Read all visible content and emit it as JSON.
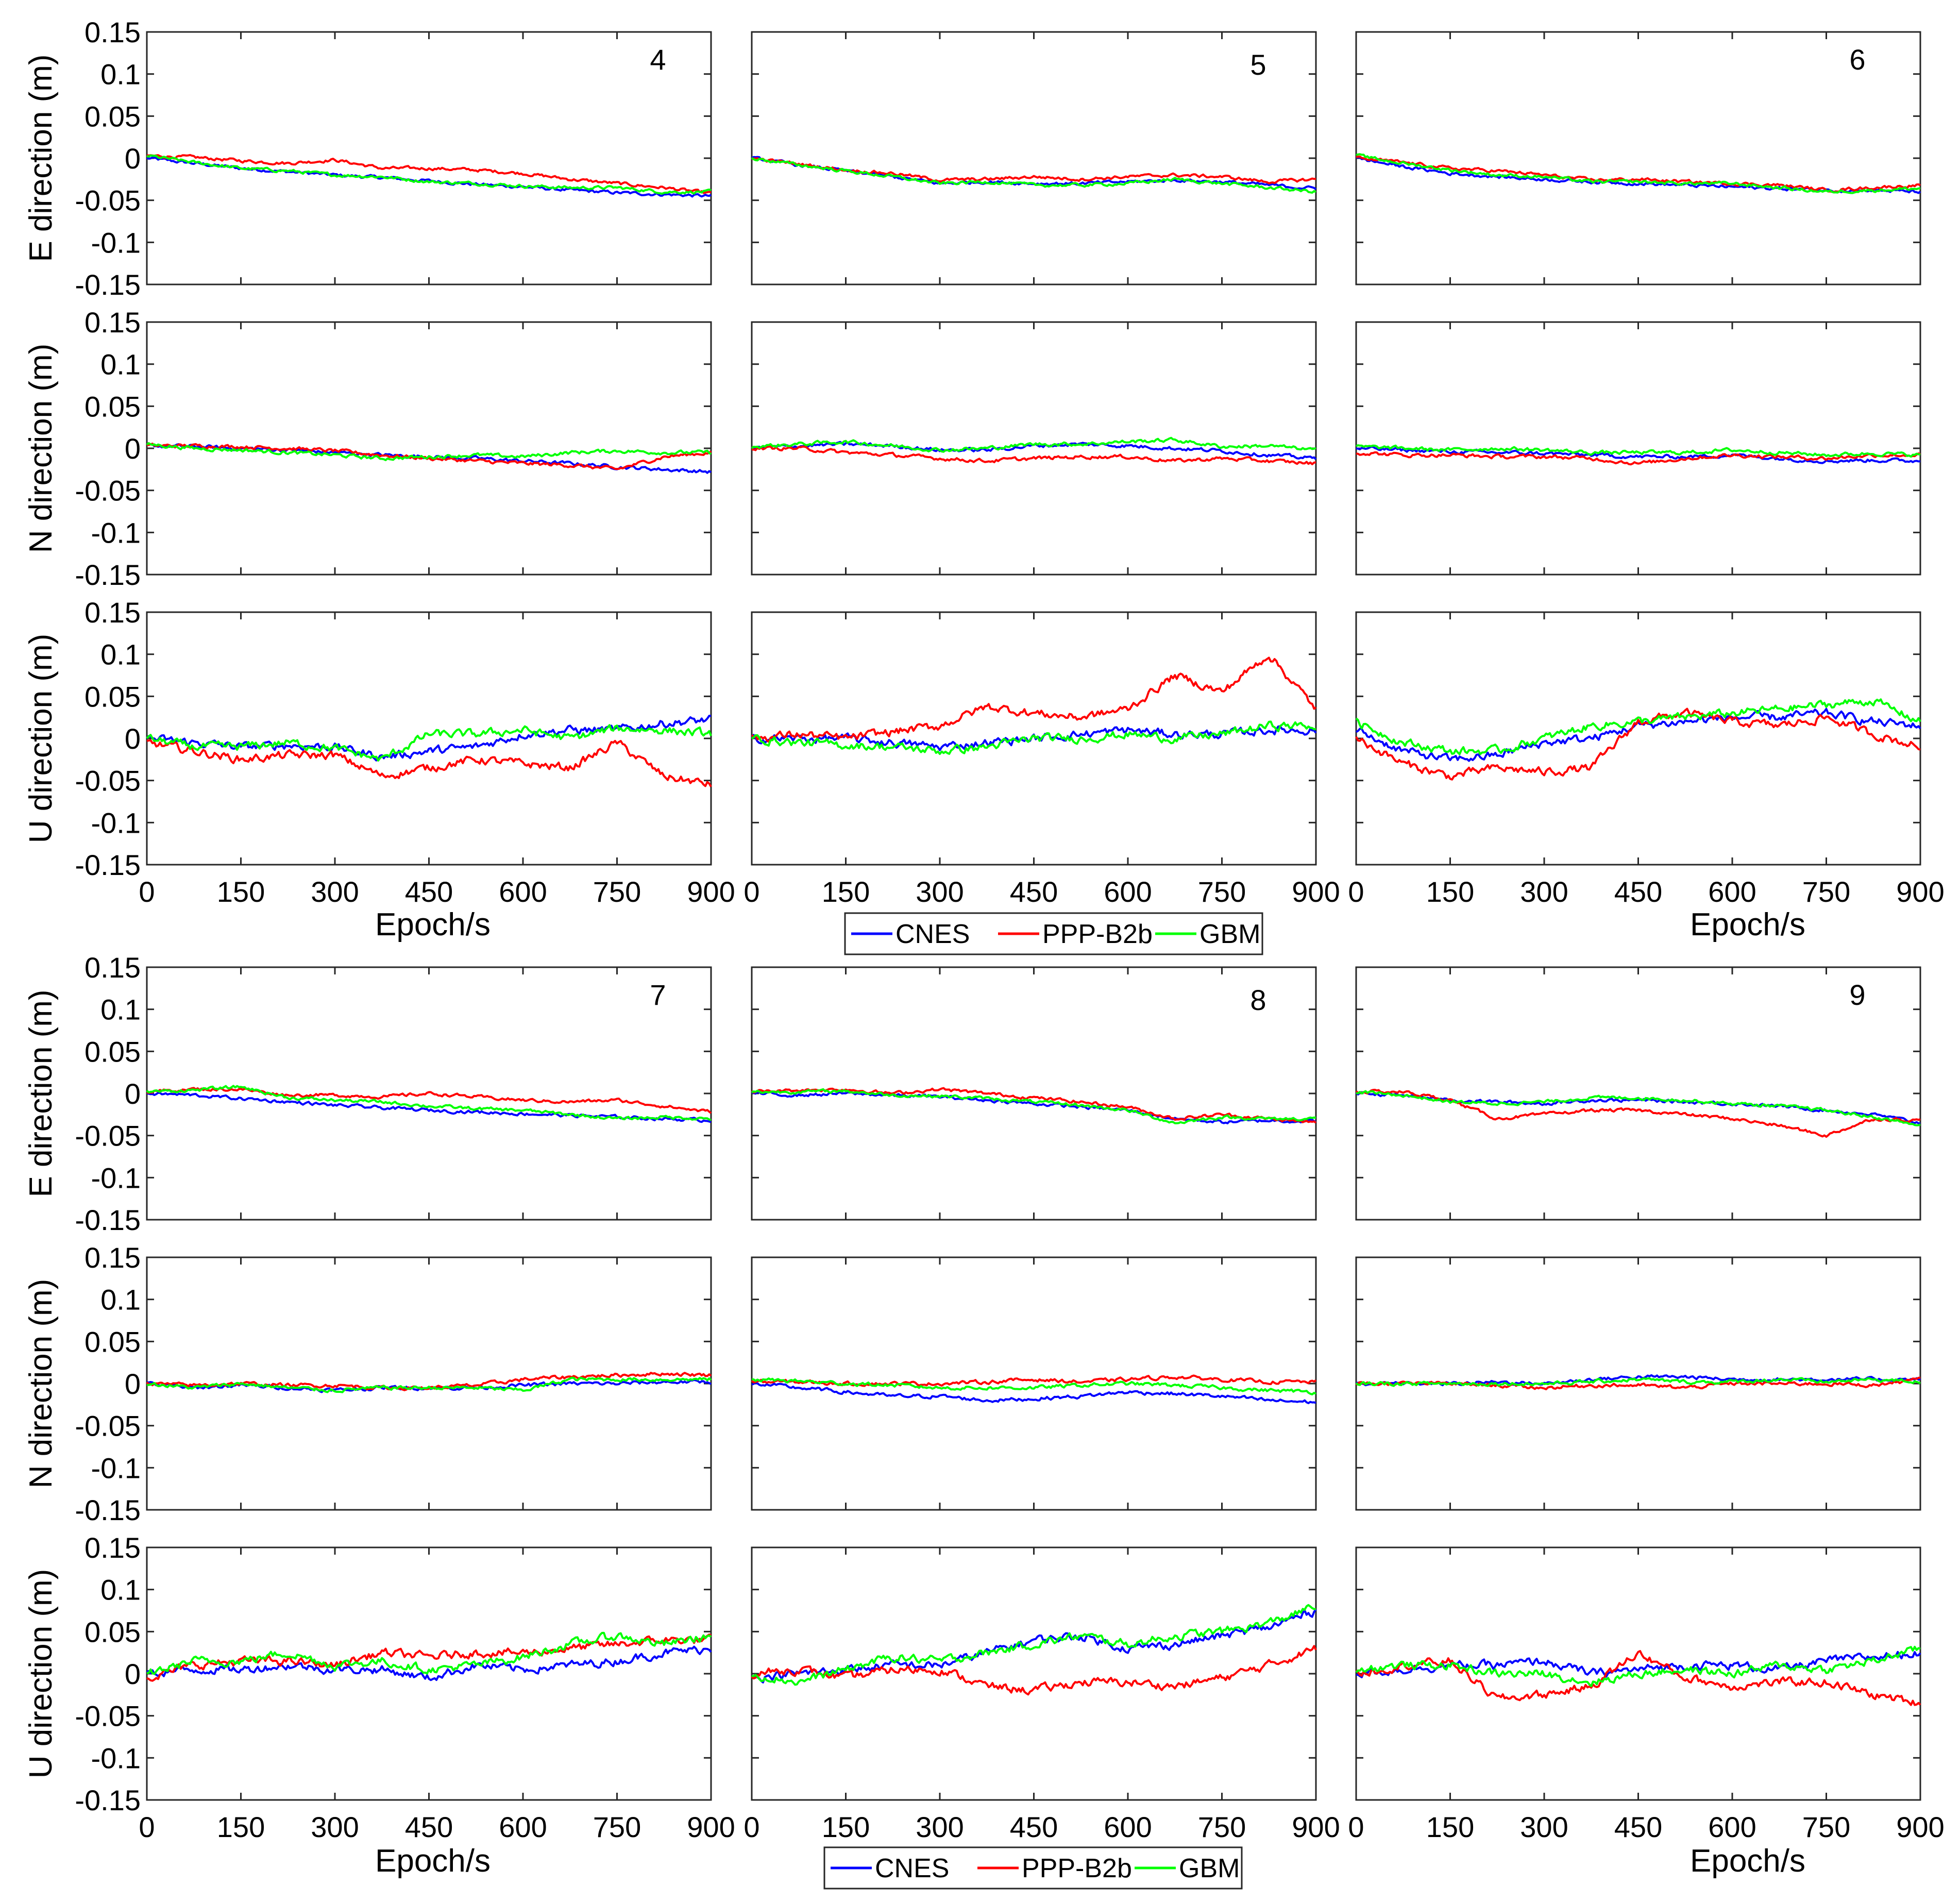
{
  "chart_data": {
    "type": "line",
    "x_ticks": [
      0,
      150,
      300,
      450,
      600,
      750,
      900
    ],
    "y_ticks": [
      0.15,
      0.1,
      0.05,
      0,
      -0.05,
      -0.1,
      -0.15
    ],
    "x_tick_labels": [
      "0",
      "150",
      "300",
      "450",
      "600",
      "750",
      "900"
    ],
    "y_tick_labels": [
      "0.15",
      "0.1",
      "0.05",
      "0",
      "-0.05",
      "-0.1",
      "-0.15"
    ],
    "xlim": [
      0,
      900
    ],
    "ylim": [
      -0.15,
      0.15
    ],
    "xlabel": "Epoch/s",
    "ylabels": {
      "E": "E direction (m)",
      "N": "N direction (m)",
      "U": "U direction (m)"
    },
    "colors": {
      "CNES": "#0000ff",
      "PPP-B2b": "#ff0000",
      "GBM": "#00ff00"
    },
    "legend": [
      "CNES",
      "PPP-B2b",
      "GBM"
    ],
    "series_names": [
      "CNES",
      "PPP-B2b",
      "GBM"
    ],
    "samples_x": [
      0,
      75,
      150,
      225,
      300,
      375,
      450,
      525,
      600,
      675,
      750,
      825,
      900
    ],
    "panels": [
      {
        "id": "4",
        "E": {
          "CNES": [
            0.0,
            -0.006,
            -0.012,
            -0.016,
            -0.02,
            -0.023,
            -0.027,
            -0.031,
            -0.034,
            -0.038,
            -0.041,
            -0.043,
            -0.045
          ],
          "PPP-B2b": [
            0.003,
            0.001,
            -0.003,
            -0.006,
            -0.002,
            -0.012,
            -0.012,
            -0.014,
            -0.018,
            -0.025,
            -0.03,
            -0.035,
            -0.042
          ],
          "GBM": [
            0.003,
            -0.005,
            -0.012,
            -0.015,
            -0.02,
            -0.022,
            -0.028,
            -0.03,
            -0.033,
            -0.035,
            -0.035,
            -0.04,
            -0.04
          ]
        },
        "N": {
          "CNES": [
            0.003,
            0.002,
            0.0,
            -0.002,
            -0.005,
            -0.008,
            -0.01,
            -0.012,
            -0.015,
            -0.018,
            -0.022,
            -0.025,
            -0.028
          ],
          "PPP-B2b": [
            0.003,
            0.003,
            0.002,
            0.0,
            -0.003,
            -0.008,
            -0.012,
            -0.015,
            -0.018,
            -0.02,
            -0.025,
            -0.01,
            -0.005
          ],
          "GBM": [
            0.005,
            0.0,
            -0.002,
            -0.005,
            -0.008,
            -0.012,
            -0.01,
            -0.008,
            -0.01,
            -0.005,
            -0.003,
            -0.005,
            -0.005
          ]
        },
        "U": {
          "CNES": [
            0.0,
            -0.005,
            -0.01,
            -0.008,
            -0.01,
            -0.022,
            -0.015,
            -0.01,
            0.005,
            0.01,
            0.01,
            0.018,
            0.022
          ],
          "PPP-B2b": [
            -0.005,
            -0.015,
            -0.025,
            -0.02,
            -0.02,
            -0.045,
            -0.035,
            -0.025,
            -0.03,
            -0.035,
            -0.005,
            -0.045,
            -0.055
          ],
          "GBM": [
            0.0,
            -0.01,
            -0.01,
            -0.005,
            -0.012,
            -0.025,
            0.005,
            0.005,
            0.01,
            0.0,
            0.012,
            0.01,
            0.005
          ]
        }
      },
      {
        "id": "5",
        "E": {
          "CNES": [
            0.0,
            -0.008,
            -0.015,
            -0.022,
            -0.03,
            -0.028,
            -0.03,
            -0.03,
            -0.028,
            -0.026,
            -0.028,
            -0.032,
            -0.036
          ],
          "PPP-B2b": [
            0.0,
            -0.007,
            -0.014,
            -0.018,
            -0.026,
            -0.025,
            -0.022,
            -0.025,
            -0.022,
            -0.02,
            -0.022,
            -0.028,
            -0.025
          ],
          "GBM": [
            0.0,
            -0.008,
            -0.015,
            -0.022,
            -0.03,
            -0.028,
            -0.032,
            -0.032,
            -0.03,
            -0.025,
            -0.03,
            -0.035,
            -0.04
          ]
        },
        "N": {
          "CNES": [
            0.0,
            0.003,
            0.005,
            0.003,
            -0.002,
            -0.002,
            0.003,
            0.005,
            0.003,
            0.0,
            -0.003,
            -0.008,
            -0.012
          ],
          "PPP-B2b": [
            0.0,
            0.0,
            -0.005,
            -0.008,
            -0.012,
            -0.015,
            -0.012,
            -0.01,
            -0.01,
            -0.015,
            -0.012,
            -0.015,
            -0.018
          ],
          "GBM": [
            0.002,
            0.005,
            0.008,
            0.003,
            -0.002,
            0.0,
            0.005,
            0.005,
            0.008,
            0.01,
            0.002,
            0.003,
            -0.002
          ]
        },
        "U": {
          "CNES": [
            0.0,
            0.0,
            0.0,
            -0.005,
            -0.01,
            -0.005,
            0.0,
            0.005,
            0.01,
            0.005,
            0.005,
            0.01,
            0.01
          ],
          "PPP-B2b": [
            0.0,
            0.005,
            0.0,
            0.008,
            0.015,
            0.038,
            0.03,
            0.025,
            0.035,
            0.075,
            0.055,
            0.1,
            0.035
          ],
          "GBM": [
            0.0,
            -0.005,
            -0.008,
            -0.01,
            -0.015,
            -0.01,
            0.0,
            0.0,
            0.005,
            0.0,
            0.005,
            0.015,
            0.015
          ]
        }
      },
      {
        "id": "6",
        "E": {
          "CNES": [
            0.0,
            -0.01,
            -0.018,
            -0.022,
            -0.025,
            -0.028,
            -0.03,
            -0.032,
            -0.034,
            -0.036,
            -0.038,
            -0.038,
            -0.04
          ],
          "PPP-B2b": [
            0.0,
            -0.005,
            -0.012,
            -0.015,
            -0.02,
            -0.026,
            -0.025,
            -0.028,
            -0.03,
            -0.032,
            -0.038,
            -0.035,
            -0.032
          ],
          "GBM": [
            0.003,
            -0.006,
            -0.014,
            -0.02,
            -0.022,
            -0.028,
            -0.028,
            -0.03,
            -0.03,
            -0.035,
            -0.04,
            -0.038,
            -0.036
          ]
        },
        "N": {
          "CNES": [
            0.0,
            -0.002,
            -0.004,
            -0.005,
            -0.006,
            -0.008,
            -0.01,
            -0.01,
            -0.008,
            -0.012,
            -0.015,
            -0.014,
            -0.015
          ],
          "PPP-B2b": [
            -0.005,
            -0.008,
            -0.008,
            -0.01,
            -0.01,
            -0.012,
            -0.018,
            -0.012,
            -0.008,
            -0.01,
            -0.012,
            -0.008,
            -0.008
          ],
          "GBM": [
            0.002,
            0.0,
            -0.002,
            0.0,
            -0.002,
            -0.005,
            -0.005,
            -0.005,
            -0.002,
            -0.005,
            -0.008,
            -0.006,
            -0.008
          ]
        },
        "U": {
          "CNES": [
            0.01,
            -0.015,
            -0.025,
            -0.02,
            -0.005,
            0.0,
            0.015,
            0.02,
            0.025,
            0.025,
            0.03,
            0.02,
            0.015
          ],
          "PPP-B2b": [
            0.0,
            -0.03,
            -0.045,
            -0.035,
            -0.04,
            -0.035,
            0.02,
            0.03,
            0.02,
            0.015,
            0.025,
            0.005,
            -0.01
          ],
          "GBM": [
            0.02,
            -0.005,
            -0.015,
            -0.015,
            0.0,
            0.015,
            0.02,
            0.025,
            0.03,
            0.035,
            0.04,
            0.045,
            0.02
          ]
        }
      },
      {
        "id": "7",
        "E": {
          "CNES": [
            0.0,
            -0.002,
            -0.006,
            -0.01,
            -0.014,
            -0.017,
            -0.02,
            -0.022,
            -0.024,
            -0.026,
            -0.028,
            -0.03,
            -0.032
          ],
          "PPP-B2b": [
            0.002,
            0.005,
            0.005,
            -0.002,
            -0.002,
            -0.004,
            0.0,
            -0.004,
            -0.008,
            -0.01,
            -0.008,
            -0.015,
            -0.022
          ],
          "GBM": [
            0.002,
            0.004,
            0.008,
            -0.005,
            -0.008,
            -0.01,
            -0.015,
            -0.018,
            -0.02,
            -0.025,
            -0.03,
            -0.028,
            -0.03
          ]
        },
        "N": {
          "CNES": [
            0.0,
            -0.005,
            -0.002,
            -0.005,
            -0.008,
            -0.005,
            -0.005,
            -0.005,
            -0.002,
            0.0,
            0.0,
            0.002,
            0.002
          ],
          "PPP-B2b": [
            0.0,
            -0.002,
            0.0,
            -0.002,
            -0.002,
            -0.005,
            -0.005,
            -0.002,
            0.005,
            0.008,
            0.01,
            0.012,
            0.01
          ],
          "GBM": [
            0.0,
            -0.005,
            0.0,
            -0.005,
            -0.008,
            -0.005,
            -0.005,
            -0.005,
            -0.008,
            0.005,
            0.005,
            0.005,
            0.005
          ]
        },
        "U": {
          "CNES": [
            0.0,
            0.005,
            0.005,
            0.01,
            0.005,
            0.005,
            -0.005,
            0.01,
            0.005,
            0.01,
            0.015,
            0.025,
            0.03
          ],
          "PPP-B2b": [
            -0.005,
            0.01,
            0.015,
            0.015,
            0.01,
            0.025,
            0.02,
            0.025,
            0.025,
            0.03,
            0.035,
            0.04,
            0.04
          ],
          "GBM": [
            0.0,
            0.015,
            0.015,
            0.025,
            0.01,
            0.015,
            0.005,
            0.01,
            0.02,
            0.035,
            0.045,
            0.035,
            0.045
          ]
        }
      },
      {
        "id": "8",
        "E": {
          "CNES": [
            0.0,
            -0.002,
            0.0,
            -0.002,
            -0.004,
            -0.008,
            -0.012,
            -0.016,
            -0.02,
            -0.03,
            -0.034,
            -0.032,
            -0.033
          ],
          "PPP-B2b": [
            0.002,
            0.004,
            0.005,
            0.0,
            0.005,
            0.0,
            -0.005,
            -0.01,
            -0.016,
            -0.03,
            -0.025,
            -0.03,
            -0.035
          ],
          "GBM": [
            0.002,
            0.002,
            0.003,
            -0.002,
            -0.003,
            -0.006,
            -0.01,
            -0.014,
            -0.02,
            -0.035,
            -0.028,
            -0.03,
            -0.03
          ]
        },
        "N": {
          "CNES": [
            0.0,
            -0.005,
            -0.01,
            -0.015,
            -0.015,
            -0.02,
            -0.018,
            -0.015,
            -0.01,
            -0.012,
            -0.015,
            -0.02,
            -0.022
          ],
          "PPP-B2b": [
            0.002,
            0.002,
            0.0,
            0.0,
            0.0,
            0.002,
            0.005,
            0.002,
            0.005,
            0.008,
            0.005,
            0.002,
            0.002
          ],
          "GBM": [
            0.005,
            0.003,
            0.0,
            -0.002,
            -0.005,
            -0.005,
            -0.005,
            -0.002,
            0.0,
            -0.002,
            -0.005,
            -0.008,
            -0.01
          ]
        },
        "U": {
          "CNES": [
            -0.005,
            0.0,
            0.005,
            0.01,
            0.01,
            0.025,
            0.04,
            0.045,
            0.03,
            0.035,
            0.045,
            0.055,
            0.075
          ],
          "PPP-B2b": [
            0.0,
            0.005,
            -0.005,
            0.005,
            0.005,
            -0.015,
            -0.02,
            -0.01,
            -0.01,
            -0.015,
            -0.005,
            0.01,
            0.03
          ],
          "GBM": [
            0.0,
            -0.01,
            0.005,
            0.02,
            0.015,
            0.025,
            0.035,
            0.045,
            0.035,
            0.045,
            0.05,
            0.06,
            0.08
          ]
        }
      },
      {
        "id": "9",
        "E": {
          "CNES": [
            0.0,
            -0.002,
            -0.008,
            -0.01,
            -0.012,
            -0.008,
            -0.008,
            -0.01,
            -0.012,
            -0.015,
            -0.02,
            -0.025,
            -0.035
          ],
          "PPP-B2b": [
            0.002,
            0.002,
            -0.008,
            -0.03,
            -0.025,
            -0.02,
            -0.02,
            -0.025,
            -0.03,
            -0.038,
            -0.05,
            -0.03,
            -0.032
          ],
          "GBM": [
            0.002,
            -0.002,
            -0.01,
            -0.012,
            -0.01,
            -0.005,
            -0.005,
            -0.008,
            -0.012,
            -0.015,
            -0.02,
            -0.028,
            -0.038
          ]
        },
        "N": {
          "CNES": [
            0.0,
            0.0,
            0.0,
            0.002,
            0.0,
            0.005,
            0.008,
            0.008,
            0.005,
            0.005,
            0.005,
            0.005,
            0.005
          ],
          "PPP-B2b": [
            0.0,
            0.0,
            0.0,
            -0.002,
            -0.005,
            -0.002,
            -0.002,
            -0.005,
            0.0,
            0.0,
            0.0,
            -0.002,
            0.005
          ],
          "GBM": [
            0.0,
            0.0,
            0.0,
            0.0,
            0.0,
            0.002,
            0.005,
            0.002,
            0.002,
            0.005,
            0.002,
            0.005,
            0.002
          ]
        },
        "U": {
          "CNES": [
            0.0,
            0.005,
            0.01,
            0.01,
            0.015,
            0.0,
            0.005,
            0.01,
            0.01,
            0.005,
            0.015,
            0.02,
            0.025
          ],
          "PPP-B2b": [
            0.0,
            0.01,
            0.015,
            -0.03,
            -0.025,
            -0.015,
            0.025,
            -0.005,
            -0.015,
            -0.01,
            -0.01,
            -0.025,
            -0.035
          ],
          "GBM": [
            0.005,
            0.01,
            0.01,
            0.0,
            0.0,
            -0.01,
            0.0,
            0.005,
            0.0,
            0.01,
            0.005,
            0.015,
            0.03
          ]
        }
      }
    ]
  }
}
